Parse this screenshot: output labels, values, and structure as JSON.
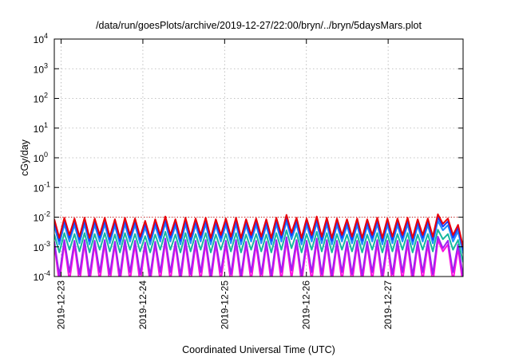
{
  "chart_data": {
    "type": "line",
    "title": "/data/run/goesPlots/archive/2019-12-27/22:00/bryn/../bryn/5daysMars.plot",
    "xlabel": "Coordinated Universal Time (UTC)",
    "ylabel": "cGy/day",
    "y_scale": "log",
    "ylim": [
      0.0001,
      10000
    ],
    "y_ticks": [
      {
        "value": 0.0001,
        "base": "10",
        "exp": "-4"
      },
      {
        "value": 0.001,
        "base": "10",
        "exp": "-3"
      },
      {
        "value": 0.01,
        "base": "10",
        "exp": "-2"
      },
      {
        "value": 0.1,
        "base": "10",
        "exp": "-1"
      },
      {
        "value": 1,
        "base": "10",
        "exp": "0"
      },
      {
        "value": 10,
        "base": "10",
        "exp": "1"
      },
      {
        "value": 100,
        "base": "10",
        "exp": "2"
      },
      {
        "value": 1000,
        "base": "10",
        "exp": "3"
      },
      {
        "value": 10000,
        "base": "10",
        "exp": "4"
      }
    ],
    "xlim": [
      "2019-12-22T22:00",
      "2019-12-27T22:00"
    ],
    "x_ticks": [
      "2019-12-23",
      "2019-12-24",
      "2019-12-25",
      "2019-12-26",
      "2019-12-27"
    ],
    "grid": true,
    "reference_line": {
      "value": 0.01,
      "color": "#cc0000",
      "style": "dotted"
    },
    "series": [
      {
        "color": "#e8000b",
        "values": [
          0.0085,
          0.002,
          0.0095,
          0.0025,
          0.009,
          0.0022,
          0.0095,
          0.002,
          0.009,
          0.0025,
          0.0095,
          0.0022,
          0.0085,
          0.002,
          0.0095,
          0.0025,
          0.009,
          0.0022,
          0.0075,
          0.002,
          0.0085,
          0.0025,
          0.0105,
          0.0025,
          0.0085,
          0.002,
          0.0095,
          0.0022,
          0.009,
          0.0025,
          0.0095,
          0.002,
          0.0085,
          0.0025,
          0.009,
          0.0022,
          0.0095,
          0.002,
          0.0085,
          0.0025,
          0.009,
          0.0022,
          0.0085,
          0.002,
          0.0095,
          0.0025,
          0.012,
          0.003,
          0.0095,
          0.002,
          0.009,
          0.0025,
          0.0105,
          0.0022,
          0.0095,
          0.002,
          0.009,
          0.0025,
          0.0085,
          0.0022,
          0.009,
          0.002,
          0.0085,
          0.0025,
          0.0095,
          0.002,
          0.009,
          0.0022,
          0.009,
          0.0025,
          0.0095,
          0.002,
          0.0085,
          0.0025,
          0.009,
          0.0022,
          0.0125,
          0.006,
          0.009,
          0.0025,
          0.0055,
          0.001
        ]
      },
      {
        "color": "#1a3cff",
        "values": [
          0.0068,
          0.0016,
          0.0076,
          0.002,
          0.0072,
          0.00176,
          0.0076,
          0.0016,
          0.0072,
          0.002,
          0.0076,
          0.00176,
          0.0068,
          0.0016,
          0.0076,
          0.002,
          0.0072,
          0.00176,
          0.006,
          0.0016,
          0.0068,
          0.002,
          0.0084,
          0.002,
          0.0068,
          0.0016,
          0.0076,
          0.00176,
          0.0072,
          0.002,
          0.0076,
          0.0016,
          0.0068,
          0.002,
          0.0072,
          0.00176,
          0.0076,
          0.0016,
          0.0068,
          0.002,
          0.0072,
          0.00176,
          0.0068,
          0.0016,
          0.0076,
          0.002,
          0.0096,
          0.0024,
          0.0076,
          0.0016,
          0.0072,
          0.002,
          0.0084,
          0.00176,
          0.0076,
          0.0016,
          0.0072,
          0.002,
          0.0068,
          0.00176,
          0.0072,
          0.0016,
          0.0068,
          0.002,
          0.0076,
          0.0016,
          0.0072,
          0.00176,
          0.0072,
          0.002,
          0.0076,
          0.0016,
          0.0068,
          0.002,
          0.0072,
          0.00176,
          0.01,
          0.0048,
          0.0072,
          0.002,
          0.0044,
          0.0008
        ]
      },
      {
        "color": "#1f8fff",
        "values": [
          0.0051,
          0.0012,
          0.0057,
          0.0015,
          0.0054,
          0.00132,
          0.0057,
          0.0012,
          0.0054,
          0.0015,
          0.0057,
          0.00132,
          0.0051,
          0.0012,
          0.0057,
          0.0015,
          0.0054,
          0.00132,
          0.0045,
          0.0012,
          0.0051,
          0.0015,
          0.0063,
          0.0015,
          0.0051,
          0.0012,
          0.0057,
          0.00132,
          0.0054,
          0.0015,
          0.0057,
          0.0012,
          0.0051,
          0.0015,
          0.0054,
          0.00132,
          0.0057,
          0.0012,
          0.0051,
          0.0015,
          0.0054,
          0.00132,
          0.0051,
          0.0012,
          0.0057,
          0.0015,
          0.0072,
          0.0018,
          0.0057,
          0.0012,
          0.0054,
          0.0015,
          0.0063,
          0.00132,
          0.0057,
          0.0012,
          0.0054,
          0.0015,
          0.0051,
          0.00132,
          0.0054,
          0.0012,
          0.0051,
          0.0015,
          0.0057,
          0.0012,
          0.0054,
          0.00132,
          0.0054,
          0.0015,
          0.0057,
          0.0012,
          0.0051,
          0.0015,
          0.0054,
          0.00132,
          0.0075,
          0.0036,
          0.0054,
          0.0015,
          0.0033,
          0.0006
        ]
      },
      {
        "color": "#17b8a0",
        "values": [
          0.0026,
          0.00065,
          0.0029,
          0.0008,
          0.0027,
          0.0007,
          0.0029,
          0.00065,
          0.0027,
          0.0008,
          0.0029,
          0.0007,
          0.0026,
          0.00065,
          0.0029,
          0.0008,
          0.0027,
          0.0007,
          0.0023,
          0.00065,
          0.0026,
          0.0008,
          0.0032,
          0.0008,
          0.0026,
          0.00065,
          0.0029,
          0.0007,
          0.0027,
          0.0008,
          0.0029,
          0.00065,
          0.0026,
          0.0008,
          0.0027,
          0.0007,
          0.0029,
          0.00065,
          0.0026,
          0.0008,
          0.0027,
          0.0007,
          0.0026,
          0.00065,
          0.0029,
          0.0008,
          0.0036,
          0.0009,
          0.0029,
          0.00065,
          0.0027,
          0.0008,
          0.0032,
          0.0007,
          0.0029,
          0.00065,
          0.0027,
          0.0008,
          0.0026,
          0.0007,
          0.0027,
          0.00065,
          0.0026,
          0.0008,
          0.0029,
          0.00065,
          0.0027,
          0.0007,
          0.0027,
          0.0008,
          0.0029,
          0.00065,
          0.0026,
          0.0008,
          0.0027,
          0.0007,
          0.0038,
          0.0018,
          0.0027,
          0.0008,
          0.0017,
          0.0003
        ]
      },
      {
        "color": "#a020f0",
        "values": [
          0.0015,
          0.00011,
          0.0017,
          0.00014,
          0.0016,
          0.00012,
          0.0017,
          0.00011,
          0.0016,
          0.00014,
          0.0017,
          0.00012,
          0.0015,
          0.00011,
          0.0017,
          0.00014,
          0.0016,
          0.00012,
          0.0014,
          0.00011,
          0.0015,
          0.00014,
          0.0019,
          0.00014,
          0.0015,
          0.00011,
          0.0017,
          0.00012,
          0.0016,
          0.00014,
          0.0017,
          0.00011,
          0.0015,
          0.00014,
          0.0016,
          0.00012,
          0.0017,
          0.00011,
          0.0015,
          0.00014,
          0.0016,
          0.00012,
          0.0015,
          0.00011,
          0.0017,
          0.00014,
          0.0021,
          0.00016,
          0.0017,
          0.00011,
          0.0016,
          0.00014,
          0.0019,
          0.00012,
          0.0017,
          0.00011,
          0.0016,
          0.00014,
          0.0015,
          0.00012,
          0.0016,
          0.00011,
          0.0015,
          0.00014,
          0.0017,
          0.00011,
          0.0016,
          0.00012,
          0.0016,
          0.00014,
          0.0017,
          0.00011,
          0.0015,
          0.00014,
          0.0016,
          0.00012,
          0.0022,
          0.0009,
          0.0016,
          0.00014,
          0.0012,
          0.0001
        ]
      },
      {
        "color": "#ff10e0",
        "values": [
          0.0012,
          6e-05,
          0.0013,
          7e-05,
          0.0012,
          6e-05,
          0.0013,
          6e-05,
          0.0012,
          7e-05,
          0.0013,
          6e-05,
          0.0012,
          6e-05,
          0.0013,
          7e-05,
          0.0012,
          6e-05,
          0.0011,
          6e-05,
          0.0012,
          7e-05,
          0.0015,
          7e-05,
          0.0012,
          6e-05,
          0.0013,
          6e-05,
          0.0012,
          7e-05,
          0.0013,
          6e-05,
          0.0012,
          7e-05,
          0.0012,
          6e-05,
          0.0013,
          6e-05,
          0.0012,
          7e-05,
          0.0012,
          6e-05,
          0.0012,
          6e-05,
          0.0013,
          7e-05,
          0.0016,
          8e-05,
          0.0013,
          6e-05,
          0.0012,
          7e-05,
          0.0015,
          6e-05,
          0.0013,
          6e-05,
          0.0012,
          7e-05,
          0.0012,
          6e-05,
          0.0012,
          6e-05,
          0.0012,
          7e-05,
          0.0013,
          6e-05,
          0.0012,
          6e-05,
          0.0012,
          7e-05,
          0.0013,
          6e-05,
          0.0012,
          7e-05,
          0.0012,
          6e-05,
          0.0017,
          0.0007,
          0.0012,
          7e-05,
          0.0009,
          5e-05
        ]
      }
    ]
  }
}
